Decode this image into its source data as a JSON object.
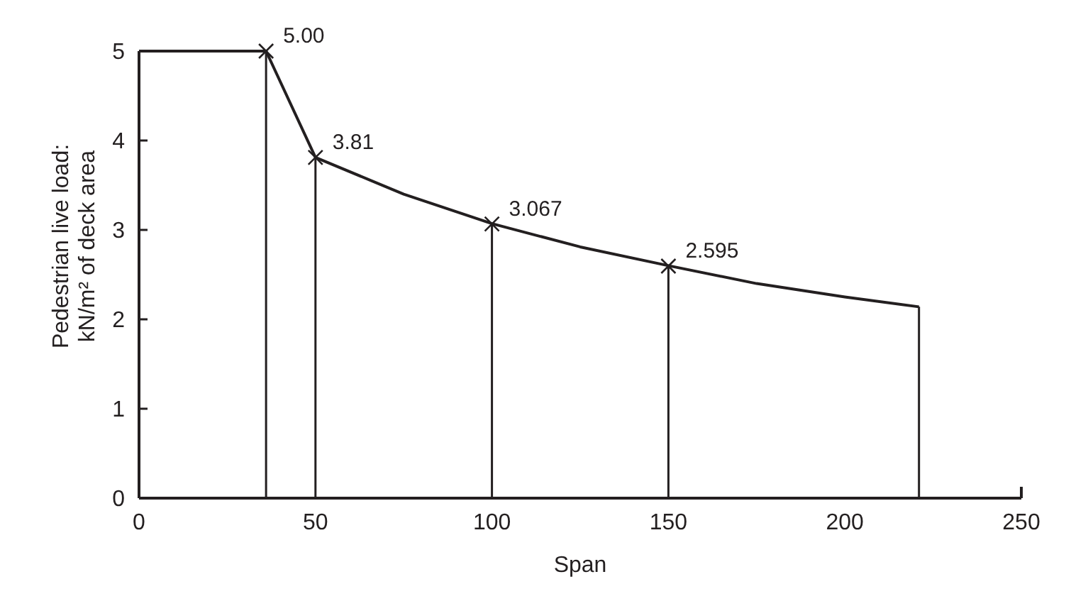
{
  "chart_data": {
    "type": "line",
    "xlabel": "Span",
    "ylabel": "Pedestrian live load:\nkN/m² of deck area",
    "xlim": [
      0,
      250
    ],
    "xticks": [
      0,
      50,
      100,
      150,
      200,
      250
    ],
    "ylim": [
      0,
      5
    ],
    "yticks": [
      0,
      1,
      2,
      3,
      4,
      5
    ],
    "grid": false,
    "series": [
      {
        "color": "#231f20",
        "marker": "none",
        "x": [
          0,
          36,
          50,
          75,
          100,
          125,
          150,
          175,
          200,
          221
        ],
        "values": [
          5,
          5,
          3.81,
          3.4,
          3.07,
          2.81,
          2.6,
          2.4,
          2.25,
          2.14
        ]
      },
      {
        "type": "scatter",
        "color": "#231f20",
        "marker": "cross",
        "x": [
          36,
          50,
          100,
          150
        ],
        "values": [
          5,
          3.81,
          3.067,
          2.595
        ],
        "value_labels": [
          "5.00",
          "3.81",
          "3.067",
          "2.595"
        ]
      }
    ],
    "ref_lines": [
      {
        "axis": "x",
        "value": 36,
        "color": "#231f20"
      },
      {
        "axis": "x",
        "value": 50,
        "color": "#231f20"
      },
      {
        "axis": "x",
        "value": 100,
        "color": "#231f20"
      },
      {
        "axis": "x",
        "value": 150,
        "color": "#231f20"
      },
      {
        "axis": "x",
        "value": 221,
        "color": "#231f20"
      }
    ]
  }
}
